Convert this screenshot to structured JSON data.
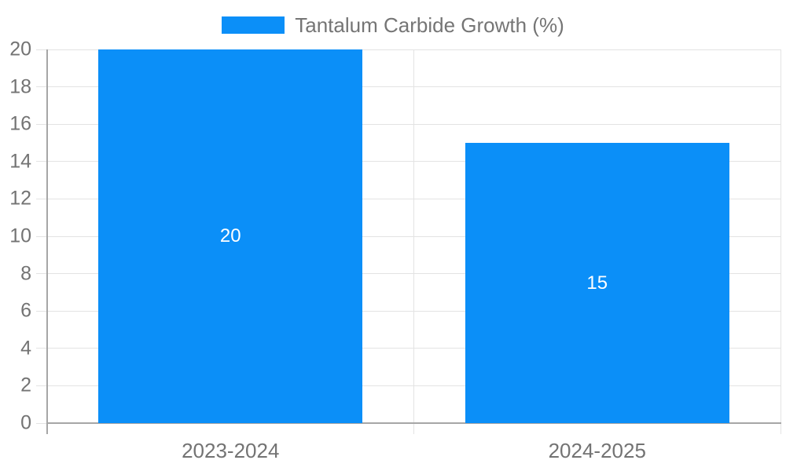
{
  "legend": {
    "items": [
      {
        "label": "Tantalum Carbide Growth (%)",
        "color": "#0b8ff8"
      }
    ]
  },
  "chart_data": {
    "type": "bar",
    "title": "",
    "categories": [
      "2023-2024",
      "2024-2025"
    ],
    "series": [
      {
        "name": "Tantalum Carbide Growth (%)",
        "values": [
          20,
          15
        ],
        "color": "#0b8ff8"
      }
    ],
    "bar_value_labels": [
      "20",
      "15"
    ],
    "xlabel": "",
    "ylabel": "",
    "ylim": [
      0,
      20
    ],
    "ytick_step": 2,
    "ytick_labels": [
      "0",
      "2",
      "4",
      "6",
      "8",
      "10",
      "12",
      "14",
      "16",
      "18",
      "20"
    ],
    "grid": true,
    "legend_position": "top-center"
  },
  "colors": {
    "bar": "#0b8ff8",
    "grid_line": "#e3e3e3",
    "axis_line": "#a6a6a6",
    "tick_label": "#737373",
    "legend_text": "#757575",
    "value_label": "#ffffff",
    "background": "#ffffff"
  }
}
